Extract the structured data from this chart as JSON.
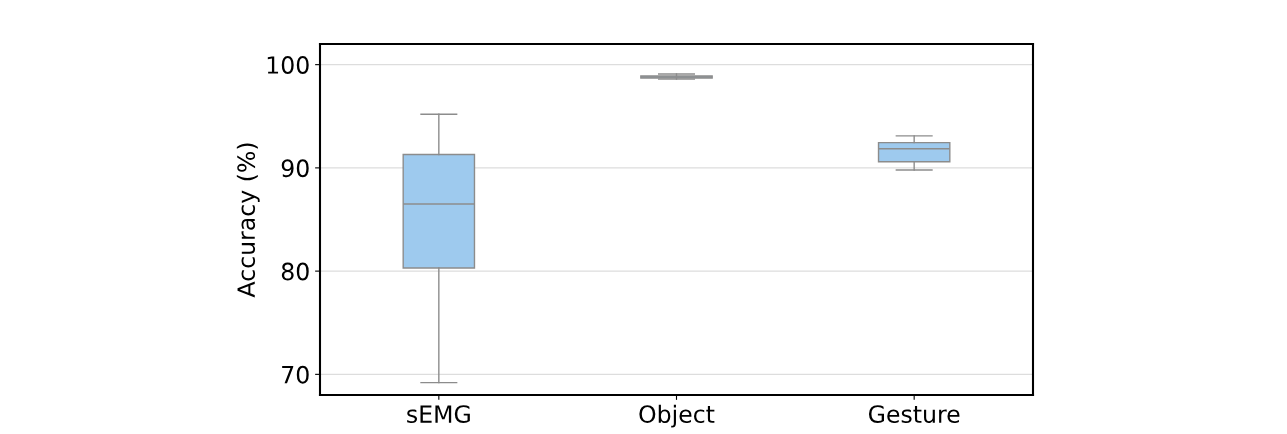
{
  "chart_data": {
    "type": "box",
    "ylabel": "Accuracy (%)",
    "categories": [
      "sEMG",
      "Object",
      "Gesture"
    ],
    "color": "#9ecaee",
    "boxes": [
      {
        "low": 69.2,
        "q1": 80.3,
        "median": 86.5,
        "q3": 91.3,
        "high": 95.2
      },
      {
        "low": 98.6,
        "q1": 98.7,
        "median": 98.8,
        "q3": 98.9,
        "high": 99.1
      },
      {
        "low": 89.8,
        "q1": 90.6,
        "median": 91.85,
        "q3": 92.45,
        "high": 93.1
      }
    ],
    "ylim": [
      68,
      102
    ],
    "yticks": [
      70,
      80,
      90,
      100
    ],
    "grid": "y"
  }
}
